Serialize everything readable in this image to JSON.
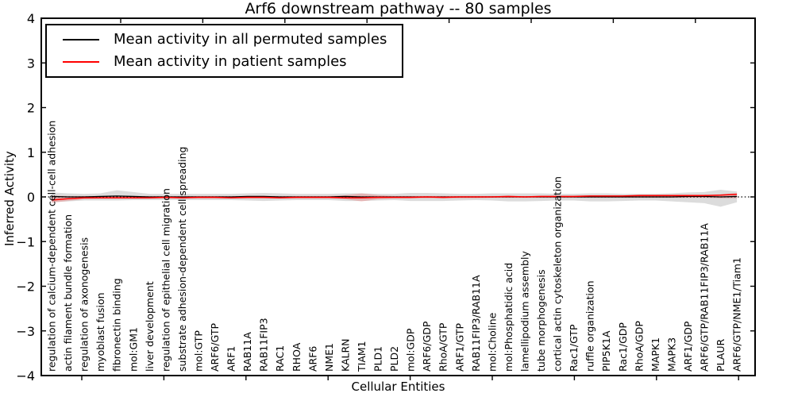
{
  "chart_data": {
    "type": "line",
    "title": "Arf6 downstream pathway -- 80 samples",
    "xlabel": "Cellular Entities",
    "ylabel": "Inferred Activity",
    "ylim": [
      -4,
      4
    ],
    "ytick_labels": [
      "4",
      "3",
      "2",
      "1",
      "0",
      "−1",
      "−2",
      "−3",
      "−4"
    ],
    "grid": false,
    "legend_position": "upper left",
    "zero_line": {
      "value": 0,
      "style": "dotted",
      "color": "#000000"
    },
    "categories": [
      "regulation of calcium-dependent cell-cell adhesion",
      "actin filament bundle formation",
      "regulation of axonogenesis",
      "myoblast fusion",
      "fibronectin binding",
      "mol:GM1",
      "liver development",
      "regulation of epithelial cell migration",
      "substrate adhesion-dependent cell spreading",
      "mol:GTP",
      "ARF6/GTP",
      "ARF1",
      "RAB11A",
      "RAB11FIP3",
      "RAC1",
      "RHOA",
      "ARF6",
      "NME1",
      "KALRN",
      "TIAM1",
      "PLD1",
      "PLD2",
      "mol:GDP",
      "ARF6/GDP",
      "RhoA/GTP",
      "ARF1/GTP",
      "RAB11FIP3/RAB11A",
      "mol:Choline",
      "mol:Phosphatidic acid",
      "lamellipodium assembly",
      "tube morphogenesis",
      "cortical actin cytoskeleton organization",
      "Rac1/GTP",
      "ruffle organization",
      "PIP5K1A",
      "Rac1/GDP",
      "RhoA/GDP",
      "MAPK1",
      "MAPK3",
      "ARF1/GDP",
      "ARF6/GTP/RAB11FIP3/RAB11A",
      "PLAUR",
      "ARF6/GTP/NME1/Tiam1"
    ],
    "series": [
      {
        "name": "Mean activity in all permuted samples",
        "color": "#000000",
        "band_color": "rgba(128,128,128,0.28)",
        "values": [
          0.01,
          0,
          0,
          0.01,
          0.02,
          0.01,
          0,
          0,
          0,
          0,
          0,
          0,
          0.01,
          0.01,
          0,
          0,
          0,
          0,
          0.01,
          0,
          0,
          0,
          0,
          0,
          0,
          0,
          0,
          0,
          0,
          0,
          0,
          0,
          0,
          0,
          0,
          0,
          0,
          0,
          0,
          0.01,
          0.01,
          0,
          0.01
        ],
        "band_upper": [
          0.1,
          0.08,
          0.07,
          0.08,
          0.15,
          0.11,
          0.07,
          0.07,
          0.07,
          0.07,
          0.07,
          0.07,
          0.08,
          0.09,
          0.08,
          0.07,
          0.07,
          0.07,
          0.08,
          0.08,
          0.07,
          0.07,
          0.09,
          0.09,
          0.08,
          0.07,
          0.07,
          0.08,
          0.08,
          0.08,
          0.08,
          0.07,
          0.07,
          0.08,
          0.08,
          0.07,
          0.07,
          0.07,
          0.08,
          0.1,
          0.11,
          0.16,
          0.12
        ],
        "band_lower": [
          -0.12,
          -0.1,
          -0.08,
          -0.08,
          -0.08,
          -0.07,
          -0.07,
          -0.07,
          -0.07,
          -0.07,
          -0.07,
          -0.07,
          -0.08,
          -0.09,
          -0.08,
          -0.07,
          -0.07,
          -0.07,
          -0.09,
          -0.09,
          -0.08,
          -0.07,
          -0.09,
          -0.09,
          -0.09,
          -0.08,
          -0.07,
          -0.08,
          -0.1,
          -0.1,
          -0.09,
          -0.08,
          -0.08,
          -0.1,
          -0.1,
          -0.09,
          -0.08,
          -0.08,
          -0.1,
          -0.12,
          -0.14,
          -0.22,
          -0.12
        ]
      },
      {
        "name": "Mean activity in patient samples",
        "color": "#ff0000",
        "band_color": "rgba(255,0,0,0.18)",
        "values": [
          -0.07,
          -0.04,
          -0.02,
          -0.02,
          -0.02,
          -0.02,
          -0.02,
          -0.01,
          -0.02,
          -0.01,
          -0.01,
          -0.02,
          -0.01,
          -0.01,
          -0.02,
          -0.01,
          -0.01,
          -0.01,
          -0.02,
          -0.02,
          -0.01,
          -0.01,
          -0.01,
          0,
          -0.01,
          0,
          0,
          0,
          0.01,
          0,
          0.01,
          0.01,
          0.01,
          0.02,
          0.02,
          0.02,
          0.03,
          0.03,
          0.03,
          0.03,
          0.03,
          0.04,
          0.06
        ],
        "band_upper": [
          0.03,
          0.02,
          0.02,
          0.02,
          0.02,
          0.02,
          0.02,
          0.02,
          0.02,
          0.02,
          0.02,
          0.02,
          0.02,
          0.02,
          0.02,
          0.02,
          0.02,
          0.02,
          0.04,
          0.08,
          0.04,
          0.02,
          0.02,
          0.02,
          0.02,
          0.02,
          0.02,
          0.02,
          0.02,
          0.02,
          0.02,
          0.02,
          0.02,
          0.02,
          0.02,
          0.02,
          0.02,
          0.02,
          0.02,
          0.02,
          0.03,
          0.06,
          0.08
        ],
        "band_lower": [
          -0.13,
          -0.09,
          -0.05,
          -0.04,
          -0.04,
          -0.04,
          -0.04,
          -0.03,
          -0.03,
          -0.03,
          -0.03,
          -0.03,
          -0.03,
          -0.03,
          -0.03,
          -0.03,
          -0.03,
          -0.03,
          -0.05,
          -0.1,
          -0.05,
          -0.03,
          -0.03,
          -0.03,
          -0.03,
          -0.03,
          -0.03,
          -0.02,
          -0.02,
          -0.02,
          -0.02,
          -0.02,
          -0.02,
          -0.02,
          -0.02,
          -0.02,
          -0.02,
          -0.02,
          -0.02,
          -0.02,
          -0.02,
          -0.03,
          -0.03
        ]
      }
    ]
  }
}
